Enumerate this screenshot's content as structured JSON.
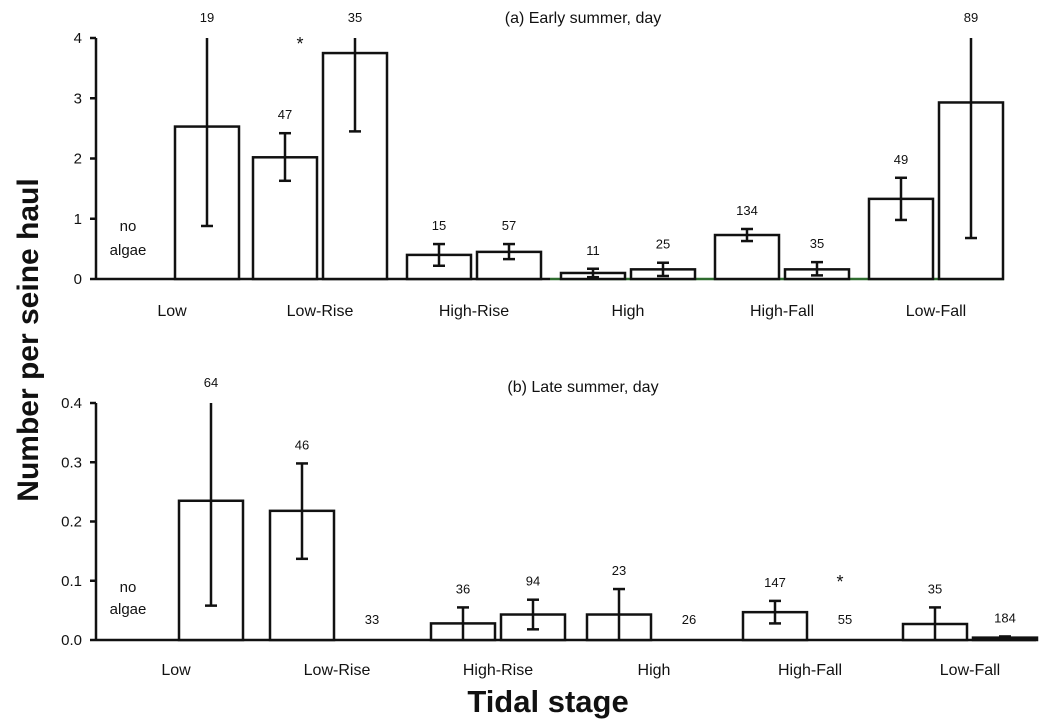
{
  "ylabel": "Number per seine haul",
  "xlabel": "Tidal stage",
  "no_algae_line1": "no",
  "no_algae_line2": "algae",
  "colors": {
    "bar_fill": "#ffffff",
    "stroke": "#111111",
    "baseline_accent": "#2e6b2e"
  },
  "chart_data": [
    {
      "type": "bar",
      "title": "(a) Early summer, day",
      "categories": [
        "Low",
        "Low-Rise",
        "High-Rise",
        "High",
        "High-Fall",
        "Low-Fall"
      ],
      "ylim": [
        0,
        4
      ],
      "yticks": [
        "0",
        "1",
        "2",
        "3",
        "4"
      ],
      "bars": [
        {
          "category": "Low",
          "pos": "right",
          "value": 2.53,
          "err_low": 0.88,
          "err_high": 4.0,
          "n": "19"
        },
        {
          "category": "Low-Rise",
          "pos": "left",
          "value": 2.02,
          "err_low": 1.63,
          "err_high": 2.42,
          "n": "47"
        },
        {
          "category": "Low-Rise",
          "pos": "right",
          "value": 3.75,
          "err_low": 2.45,
          "err_high": 4.0,
          "n": "35"
        },
        {
          "category": "High-Rise",
          "pos": "left",
          "value": 0.4,
          "err_low": 0.22,
          "err_high": 0.58,
          "n": "15"
        },
        {
          "category": "High-Rise",
          "pos": "right",
          "value": 0.45,
          "err_low": 0.33,
          "err_high": 0.58,
          "n": "57"
        },
        {
          "category": "High",
          "pos": "left",
          "value": 0.1,
          "err_low": 0.03,
          "err_high": 0.17,
          "n": "11"
        },
        {
          "category": "High",
          "pos": "right",
          "value": 0.16,
          "err_low": 0.05,
          "err_high": 0.27,
          "n": "25"
        },
        {
          "category": "High-Fall",
          "pos": "left",
          "value": 0.73,
          "err_low": 0.63,
          "err_high": 0.83,
          "n": "134"
        },
        {
          "category": "High-Fall",
          "pos": "right",
          "value": 0.16,
          "err_low": 0.06,
          "err_high": 0.28,
          "n": "35"
        },
        {
          "category": "Low-Fall",
          "pos": "left",
          "value": 1.33,
          "err_low": 0.98,
          "err_high": 1.68,
          "n": "49"
        },
        {
          "category": "Low-Fall",
          "pos": "right",
          "value": 2.93,
          "err_low": 0.68,
          "err_high": 4.0,
          "n": "89"
        }
      ],
      "significance": [
        {
          "category": "Low-Rise",
          "label": "*"
        }
      ]
    },
    {
      "type": "bar",
      "title": "(b) Late summer, day",
      "categories": [
        "Low",
        "Low-Rise",
        "High-Rise",
        "High",
        "High-Fall",
        "Low-Fall"
      ],
      "ylim": [
        0,
        0.4
      ],
      "yticks": [
        "0.0",
        "0.1",
        "0.2",
        "0.3",
        "0.4"
      ],
      "bars": [
        {
          "category": "Low",
          "pos": "right",
          "value": 0.235,
          "err_low": 0.058,
          "err_high": 0.4,
          "n": "64"
        },
        {
          "category": "Low-Rise",
          "pos": "left",
          "value": 0.218,
          "err_low": 0.137,
          "err_high": 0.298,
          "n": "46"
        },
        {
          "category": "Low-Rise",
          "pos": "right",
          "value": 0,
          "n": "33"
        },
        {
          "category": "High-Rise",
          "pos": "left",
          "value": 0.028,
          "err_low": 0.0,
          "err_high": 0.055,
          "n": "36"
        },
        {
          "category": "High-Rise",
          "pos": "right",
          "value": 0.043,
          "err_low": 0.018,
          "err_high": 0.068,
          "n": "94"
        },
        {
          "category": "High",
          "pos": "left",
          "value": 0.043,
          "err_low": 0.0,
          "err_high": 0.086,
          "n": "23"
        },
        {
          "category": "High",
          "pos": "right",
          "value": 0,
          "n": "26"
        },
        {
          "category": "High-Fall",
          "pos": "left",
          "value": 0.047,
          "err_low": 0.028,
          "err_high": 0.066,
          "n": "147"
        },
        {
          "category": "High-Fall",
          "pos": "right",
          "value": 0,
          "n": "55"
        },
        {
          "category": "Low-Fall",
          "pos": "left",
          "value": 0.027,
          "err_low": 0.0,
          "err_high": 0.055,
          "n": "35"
        },
        {
          "category": "Low-Fall",
          "pos": "right",
          "value": 0.004,
          "err_low": 0.002,
          "err_high": 0.006,
          "n": "184"
        }
      ],
      "significance": [
        {
          "category": "High-Fall",
          "label": "*"
        }
      ]
    }
  ]
}
